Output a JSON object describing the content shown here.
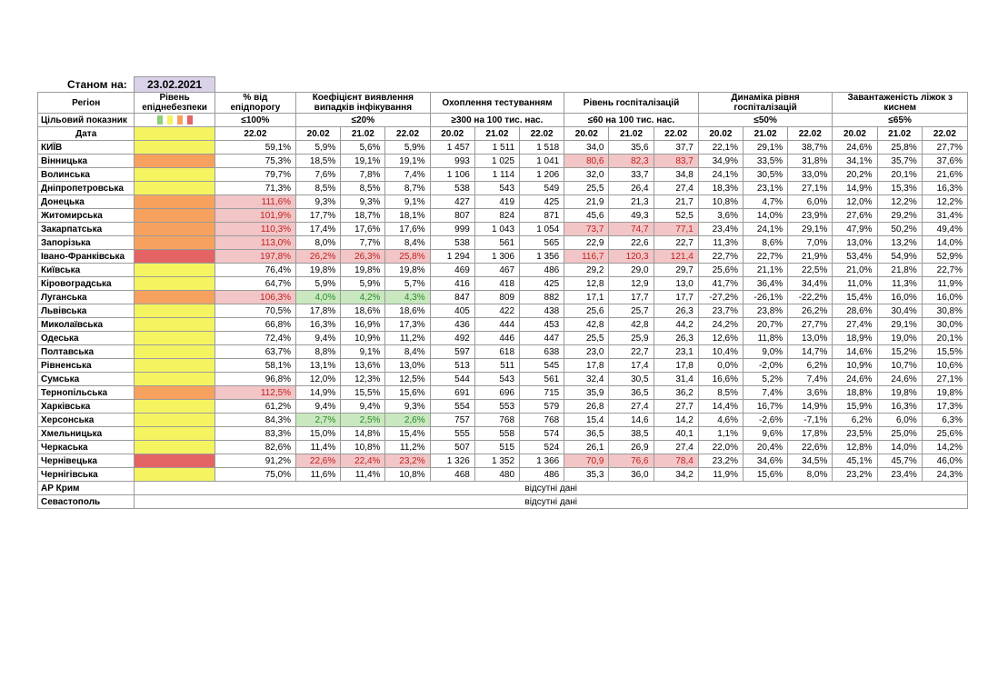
{
  "as_of_label": "Станом на:",
  "as_of_date": "23.02.2021",
  "headers": {
    "region": "Регіон",
    "level": "Рівень епіднебезпеки",
    "pct_threshold": "% від епідпорогу",
    "coef": "Коефіцієнт виявлення випадків інфікування",
    "testing": "Охоплення тестуванням",
    "hosp": "Рівень госпіталізацій",
    "hosp_dyn": "Динаміка рівня госпіталізацій",
    "beds": "Завантаженість ліжок з киснем"
  },
  "targets": {
    "label": "Цільовий показник",
    "level_colors": [
      "#8fce7a",
      "#f4f461",
      "#f6a25e",
      "#e46465"
    ],
    "pct_threshold": "≤100%",
    "coef": "≤20%",
    "testing": "≥300 на 100 тис. нас.",
    "hosp": "≤60 на 100 тис. нас.",
    "hosp_dyn": "≤50%",
    "beds": "≤65%"
  },
  "dates": {
    "label": "Дата",
    "single": "22.02",
    "triple": [
      "20.02",
      "21.02",
      "22.02"
    ]
  },
  "rows": [
    {
      "name": "КИЇВ",
      "level": "yellow",
      "pct": "59,1%",
      "coef": [
        "5,9%",
        "5,6%",
        "5,9%"
      ],
      "test": [
        "1 457",
        "1 511",
        "1 518"
      ],
      "hosp": [
        "34,0",
        "35,6",
        "37,7"
      ],
      "dyn": [
        "22,1%",
        "29,1%",
        "38,7%"
      ],
      "beds": [
        "24,6%",
        "25,8%",
        "27,7%"
      ]
    },
    {
      "name": "Вінницька",
      "level": "orange",
      "pct": "75,3%",
      "coef": [
        "18,5%",
        "19,1%",
        "19,1%"
      ],
      "test": [
        "993",
        "1 025",
        "1 041"
      ],
      "hosp": [
        "80,6",
        "82,3",
        "83,7"
      ],
      "hosp_hl": "red",
      "dyn": [
        "34,9%",
        "33,5%",
        "31,8%"
      ],
      "beds": [
        "34,1%",
        "35,7%",
        "37,6%"
      ]
    },
    {
      "name": "Волинська",
      "level": "yellow",
      "pct": "79,7%",
      "coef": [
        "7,6%",
        "7,8%",
        "7,4%"
      ],
      "test": [
        "1 106",
        "1 114",
        "1 206"
      ],
      "hosp": [
        "32,0",
        "33,7",
        "34,8"
      ],
      "dyn": [
        "24,1%",
        "30,5%",
        "33,0%"
      ],
      "beds": [
        "20,2%",
        "20,1%",
        "21,6%"
      ]
    },
    {
      "name": "Дніпропетровська",
      "level": "yellow",
      "pct": "71,3%",
      "coef": [
        "8,5%",
        "8,5%",
        "8,7%"
      ],
      "test": [
        "538",
        "543",
        "549"
      ],
      "hosp": [
        "25,5",
        "26,4",
        "27,4"
      ],
      "dyn": [
        "18,3%",
        "23,1%",
        "27,1%"
      ],
      "beds": [
        "14,9%",
        "15,3%",
        "16,3%"
      ]
    },
    {
      "name": "Донецька",
      "level": "orange",
      "pct": "111,6%",
      "pct_hl": "red",
      "coef": [
        "9,3%",
        "9,3%",
        "9,1%"
      ],
      "test": [
        "427",
        "419",
        "425"
      ],
      "hosp": [
        "21,9",
        "21,3",
        "21,7"
      ],
      "dyn": [
        "10,8%",
        "4,7%",
        "6,0%"
      ],
      "beds": [
        "12,0%",
        "12,2%",
        "12,2%"
      ]
    },
    {
      "name": "Житомирська",
      "level": "orange",
      "pct": "101,9%",
      "pct_hl": "red",
      "coef": [
        "17,7%",
        "18,7%",
        "18,1%"
      ],
      "test": [
        "807",
        "824",
        "871"
      ],
      "hosp": [
        "45,6",
        "49,3",
        "52,5"
      ],
      "dyn": [
        "3,6%",
        "14,0%",
        "23,9%"
      ],
      "beds": [
        "27,6%",
        "29,2%",
        "31,4%"
      ]
    },
    {
      "name": "Закарпатська",
      "level": "orange",
      "pct": "110,3%",
      "pct_hl": "red",
      "coef": [
        "17,4%",
        "17,6%",
        "17,6%"
      ],
      "test": [
        "999",
        "1 043",
        "1 054"
      ],
      "hosp": [
        "73,7",
        "74,7",
        "77,1"
      ],
      "hosp_hl": "red",
      "dyn": [
        "23,4%",
        "24,1%",
        "29,1%"
      ],
      "beds": [
        "47,9%",
        "50,2%",
        "49,4%"
      ]
    },
    {
      "name": "Запорізька",
      "level": "orange",
      "pct": "113,0%",
      "pct_hl": "red",
      "coef": [
        "8,0%",
        "7,7%",
        "8,4%"
      ],
      "test": [
        "538",
        "561",
        "565"
      ],
      "hosp": [
        "22,9",
        "22,6",
        "22,7"
      ],
      "dyn": [
        "11,3%",
        "8,6%",
        "7,0%"
      ],
      "beds": [
        "13,0%",
        "13,2%",
        "14,0%"
      ]
    },
    {
      "name": "Івано-Франківська",
      "level": "red",
      "pct": "197,8%",
      "pct_hl": "red",
      "coef": [
        "26,2%",
        "26,3%",
        "25,8%"
      ],
      "coef_hl": "red",
      "test": [
        "1 294",
        "1 306",
        "1 356"
      ],
      "hosp": [
        "116,7",
        "120,3",
        "121,4"
      ],
      "hosp_hl": "red",
      "dyn": [
        "22,7%",
        "22,7%",
        "21,9%"
      ],
      "beds": [
        "53,4%",
        "54,9%",
        "52,9%"
      ]
    },
    {
      "name": "Київська",
      "level": "yellow",
      "pct": "76,4%",
      "coef": [
        "19,8%",
        "19,8%",
        "19,8%"
      ],
      "test": [
        "469",
        "467",
        "486"
      ],
      "hosp": [
        "29,2",
        "29,0",
        "29,7"
      ],
      "dyn": [
        "25,6%",
        "21,1%",
        "22,5%"
      ],
      "beds": [
        "21,0%",
        "21,8%",
        "22,7%"
      ]
    },
    {
      "name": "Кіровоградська",
      "level": "yellow",
      "pct": "64,7%",
      "coef": [
        "5,9%",
        "5,9%",
        "5,7%"
      ],
      "test": [
        "416",
        "418",
        "425"
      ],
      "hosp": [
        "12,8",
        "12,9",
        "13,0"
      ],
      "dyn": [
        "41,7%",
        "36,4%",
        "34,4%"
      ],
      "beds": [
        "11,0%",
        "11,3%",
        "11,9%"
      ]
    },
    {
      "name": "Луганська",
      "level": "orange",
      "pct": "106,3%",
      "pct_hl": "red",
      "coef": [
        "4,0%",
        "4,2%",
        "4,3%"
      ],
      "coef_hl": "green",
      "test": [
        "847",
        "809",
        "882"
      ],
      "hosp": [
        "17,1",
        "17,7",
        "17,7"
      ],
      "dyn": [
        "-27,2%",
        "-26,1%",
        "-22,2%"
      ],
      "beds": [
        "15,4%",
        "16,0%",
        "16,0%"
      ]
    },
    {
      "name": "Львівська",
      "level": "yellow",
      "pct": "70,5%",
      "coef": [
        "17,8%",
        "18,6%",
        "18,6%"
      ],
      "test": [
        "405",
        "422",
        "438"
      ],
      "hosp": [
        "25,6",
        "25,7",
        "26,3"
      ],
      "dyn": [
        "23,7%",
        "23,8%",
        "26,2%"
      ],
      "beds": [
        "28,6%",
        "30,4%",
        "30,8%"
      ]
    },
    {
      "name": "Миколаївська",
      "level": "yellow",
      "pct": "66,8%",
      "coef": [
        "16,3%",
        "16,9%",
        "17,3%"
      ],
      "test": [
        "436",
        "444",
        "453"
      ],
      "hosp": [
        "42,8",
        "42,8",
        "44,2"
      ],
      "dyn": [
        "24,2%",
        "20,7%",
        "27,7%"
      ],
      "beds": [
        "27,4%",
        "29,1%",
        "30,0%"
      ]
    },
    {
      "name": "Одеська",
      "level": "yellow",
      "pct": "72,4%",
      "coef": [
        "9,4%",
        "10,9%",
        "11,2%"
      ],
      "test": [
        "492",
        "446",
        "447"
      ],
      "hosp": [
        "25,5",
        "25,9",
        "26,3"
      ],
      "dyn": [
        "12,6%",
        "11,8%",
        "13,0%"
      ],
      "beds": [
        "18,9%",
        "19,0%",
        "20,1%"
      ]
    },
    {
      "name": "Полтавська",
      "level": "yellow",
      "pct": "63,7%",
      "coef": [
        "8,8%",
        "9,1%",
        "8,4%"
      ],
      "test": [
        "597",
        "618",
        "638"
      ],
      "hosp": [
        "23,0",
        "22,7",
        "23,1"
      ],
      "dyn": [
        "10,4%",
        "9,0%",
        "14,7%"
      ],
      "beds": [
        "14,6%",
        "15,2%",
        "15,5%"
      ]
    },
    {
      "name": "Рівненська",
      "level": "yellow",
      "pct": "58,1%",
      "coef": [
        "13,1%",
        "13,6%",
        "13,0%"
      ],
      "test": [
        "513",
        "511",
        "545"
      ],
      "hosp": [
        "17,8",
        "17,4",
        "17,8"
      ],
      "dyn": [
        "0,0%",
        "-2,0%",
        "6,2%"
      ],
      "beds": [
        "10,9%",
        "10,7%",
        "10,6%"
      ]
    },
    {
      "name": "Сумська",
      "level": "yellow",
      "pct": "96,8%",
      "coef": [
        "12,0%",
        "12,3%",
        "12,5%"
      ],
      "test": [
        "544",
        "543",
        "561"
      ],
      "hosp": [
        "32,4",
        "30,5",
        "31,4"
      ],
      "dyn": [
        "16,6%",
        "5,2%",
        "7,4%"
      ],
      "beds": [
        "24,6%",
        "24,6%",
        "27,1%"
      ]
    },
    {
      "name": "Тернопільська",
      "level": "orange",
      "pct": "112,5%",
      "pct_hl": "red",
      "coef": [
        "14,9%",
        "15,5%",
        "15,6%"
      ],
      "test": [
        "691",
        "696",
        "715"
      ],
      "hosp": [
        "35,9",
        "36,5",
        "36,2"
      ],
      "dyn": [
        "8,5%",
        "7,4%",
        "3,6%"
      ],
      "beds": [
        "18,8%",
        "19,8%",
        "19,8%"
      ]
    },
    {
      "name": "Харківська",
      "level": "yellow",
      "pct": "61,2%",
      "coef": [
        "9,4%",
        "9,4%",
        "9,3%"
      ],
      "test": [
        "554",
        "553",
        "579"
      ],
      "hosp": [
        "26,8",
        "27,4",
        "27,7"
      ],
      "dyn": [
        "14,4%",
        "16,7%",
        "14,9%"
      ],
      "beds": [
        "15,9%",
        "16,3%",
        "17,3%"
      ]
    },
    {
      "name": "Херсонська",
      "level": "yellow",
      "pct": "84,3%",
      "coef": [
        "2,7%",
        "2,5%",
        "2,6%"
      ],
      "coef_hl": "green",
      "test": [
        "757",
        "768",
        "768"
      ],
      "hosp": [
        "15,4",
        "14,6",
        "14,2"
      ],
      "dyn": [
        "4,6%",
        "-2,6%",
        "-7,1%"
      ],
      "beds": [
        "6,2%",
        "6,0%",
        "6,3%"
      ]
    },
    {
      "name": "Хмельницька",
      "level": "yellow",
      "pct": "83,3%",
      "coef": [
        "15,0%",
        "14,8%",
        "15,4%"
      ],
      "test": [
        "555",
        "558",
        "574"
      ],
      "hosp": [
        "36,5",
        "38,5",
        "40,1"
      ],
      "dyn": [
        "1,1%",
        "9,6%",
        "17,8%"
      ],
      "beds": [
        "23,5%",
        "25,0%",
        "25,6%"
      ]
    },
    {
      "name": "Черкаська",
      "level": "yellow",
      "pct": "82,6%",
      "coef": [
        "11,4%",
        "10,8%",
        "11,2%"
      ],
      "test": [
        "507",
        "515",
        "524"
      ],
      "hosp": [
        "26,1",
        "26,9",
        "27,4"
      ],
      "dyn": [
        "22,0%",
        "20,4%",
        "22,6%"
      ],
      "beds": [
        "12,8%",
        "14,0%",
        "14,2%"
      ]
    },
    {
      "name": "Чернівецька",
      "level": "red",
      "pct": "91,2%",
      "coef": [
        "22,6%",
        "22,4%",
        "23,2%"
      ],
      "coef_hl": "red",
      "test": [
        "1 326",
        "1 352",
        "1 366"
      ],
      "hosp": [
        "70,9",
        "76,6",
        "78,4"
      ],
      "hosp_hl": "red",
      "dyn": [
        "23,2%",
        "34,6%",
        "34,5%"
      ],
      "beds": [
        "45,1%",
        "45,7%",
        "46,0%"
      ]
    },
    {
      "name": "Чернігівська",
      "level": "yellow",
      "pct": "75,0%",
      "coef": [
        "11,6%",
        "11,4%",
        "10,8%"
      ],
      "test": [
        "468",
        "480",
        "486"
      ],
      "hosp": [
        "35,3",
        "36,0",
        "34,2"
      ],
      "dyn": [
        "11,9%",
        "15,6%",
        "8,0%"
      ],
      "beds": [
        "23,2%",
        "23,4%",
        "24,3%"
      ]
    }
  ],
  "missing_rows": [
    {
      "name": "АР Крим",
      "text": "відсутні дані"
    },
    {
      "name": "Севастополь",
      "text": "відсутні дані"
    }
  ]
}
